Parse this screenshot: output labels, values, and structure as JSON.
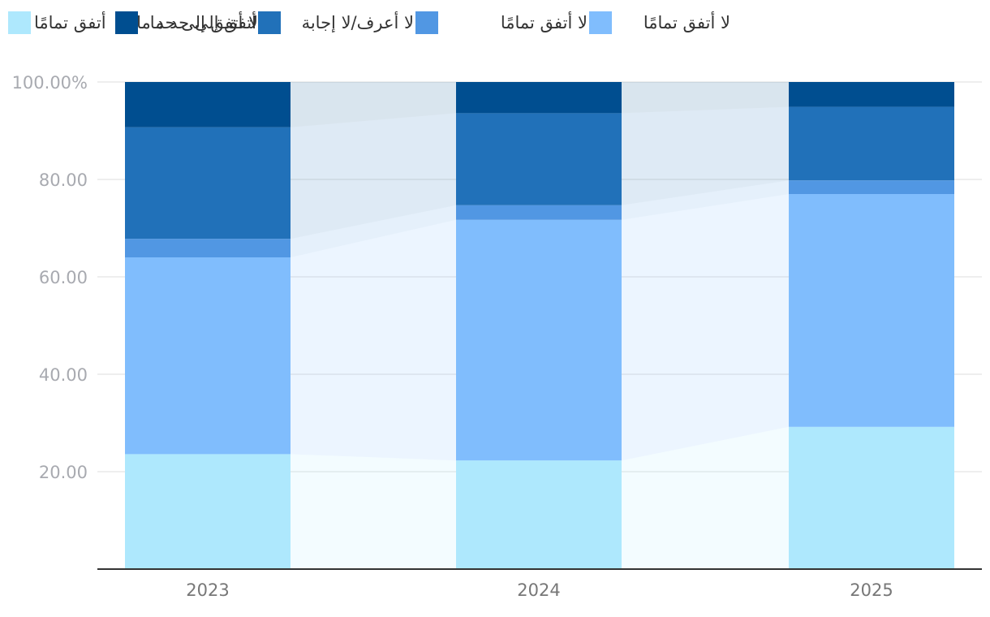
{
  "chart_data": {
    "type": "bar",
    "stacked": true,
    "normalized": true,
    "categories": [
      "2023",
      "2024",
      "2025"
    ],
    "series": [
      {
        "name": "أتفق تمامًا",
        "color": "#aee8fd",
        "values": [
          23.6,
          22.3,
          29.2
        ]
      },
      {
        "name": "لا أتفق تمامًا",
        "color": "#80bdfd",
        "values": [
          40.4,
          49.4,
          47.8
        ]
      },
      {
        "name": "لا أعرف/لا إجابة",
        "color": "#5197e3",
        "values": [
          3.8,
          3.0,
          2.8
        ]
      },
      {
        "name": "أتفق إلى حد ما",
        "color": "#2171b9",
        "values": [
          22.9,
          18.9,
          15.1
        ]
      },
      {
        "name": "لا أتفق إلى حد ما",
        "color": "#004e90",
        "values": [
          9.3,
          6.4,
          5.1
        ]
      }
    ],
    "ylim": [
      0,
      100
    ],
    "yticks": [
      "20.00",
      "40.00",
      "60.00",
      "80.00",
      "100.00%"
    ],
    "ytick_values": [
      20,
      40,
      60,
      80,
      100
    ],
    "grid": true,
    "legend": "top",
    "title": "",
    "xlabel": "",
    "ylabel": ""
  }
}
